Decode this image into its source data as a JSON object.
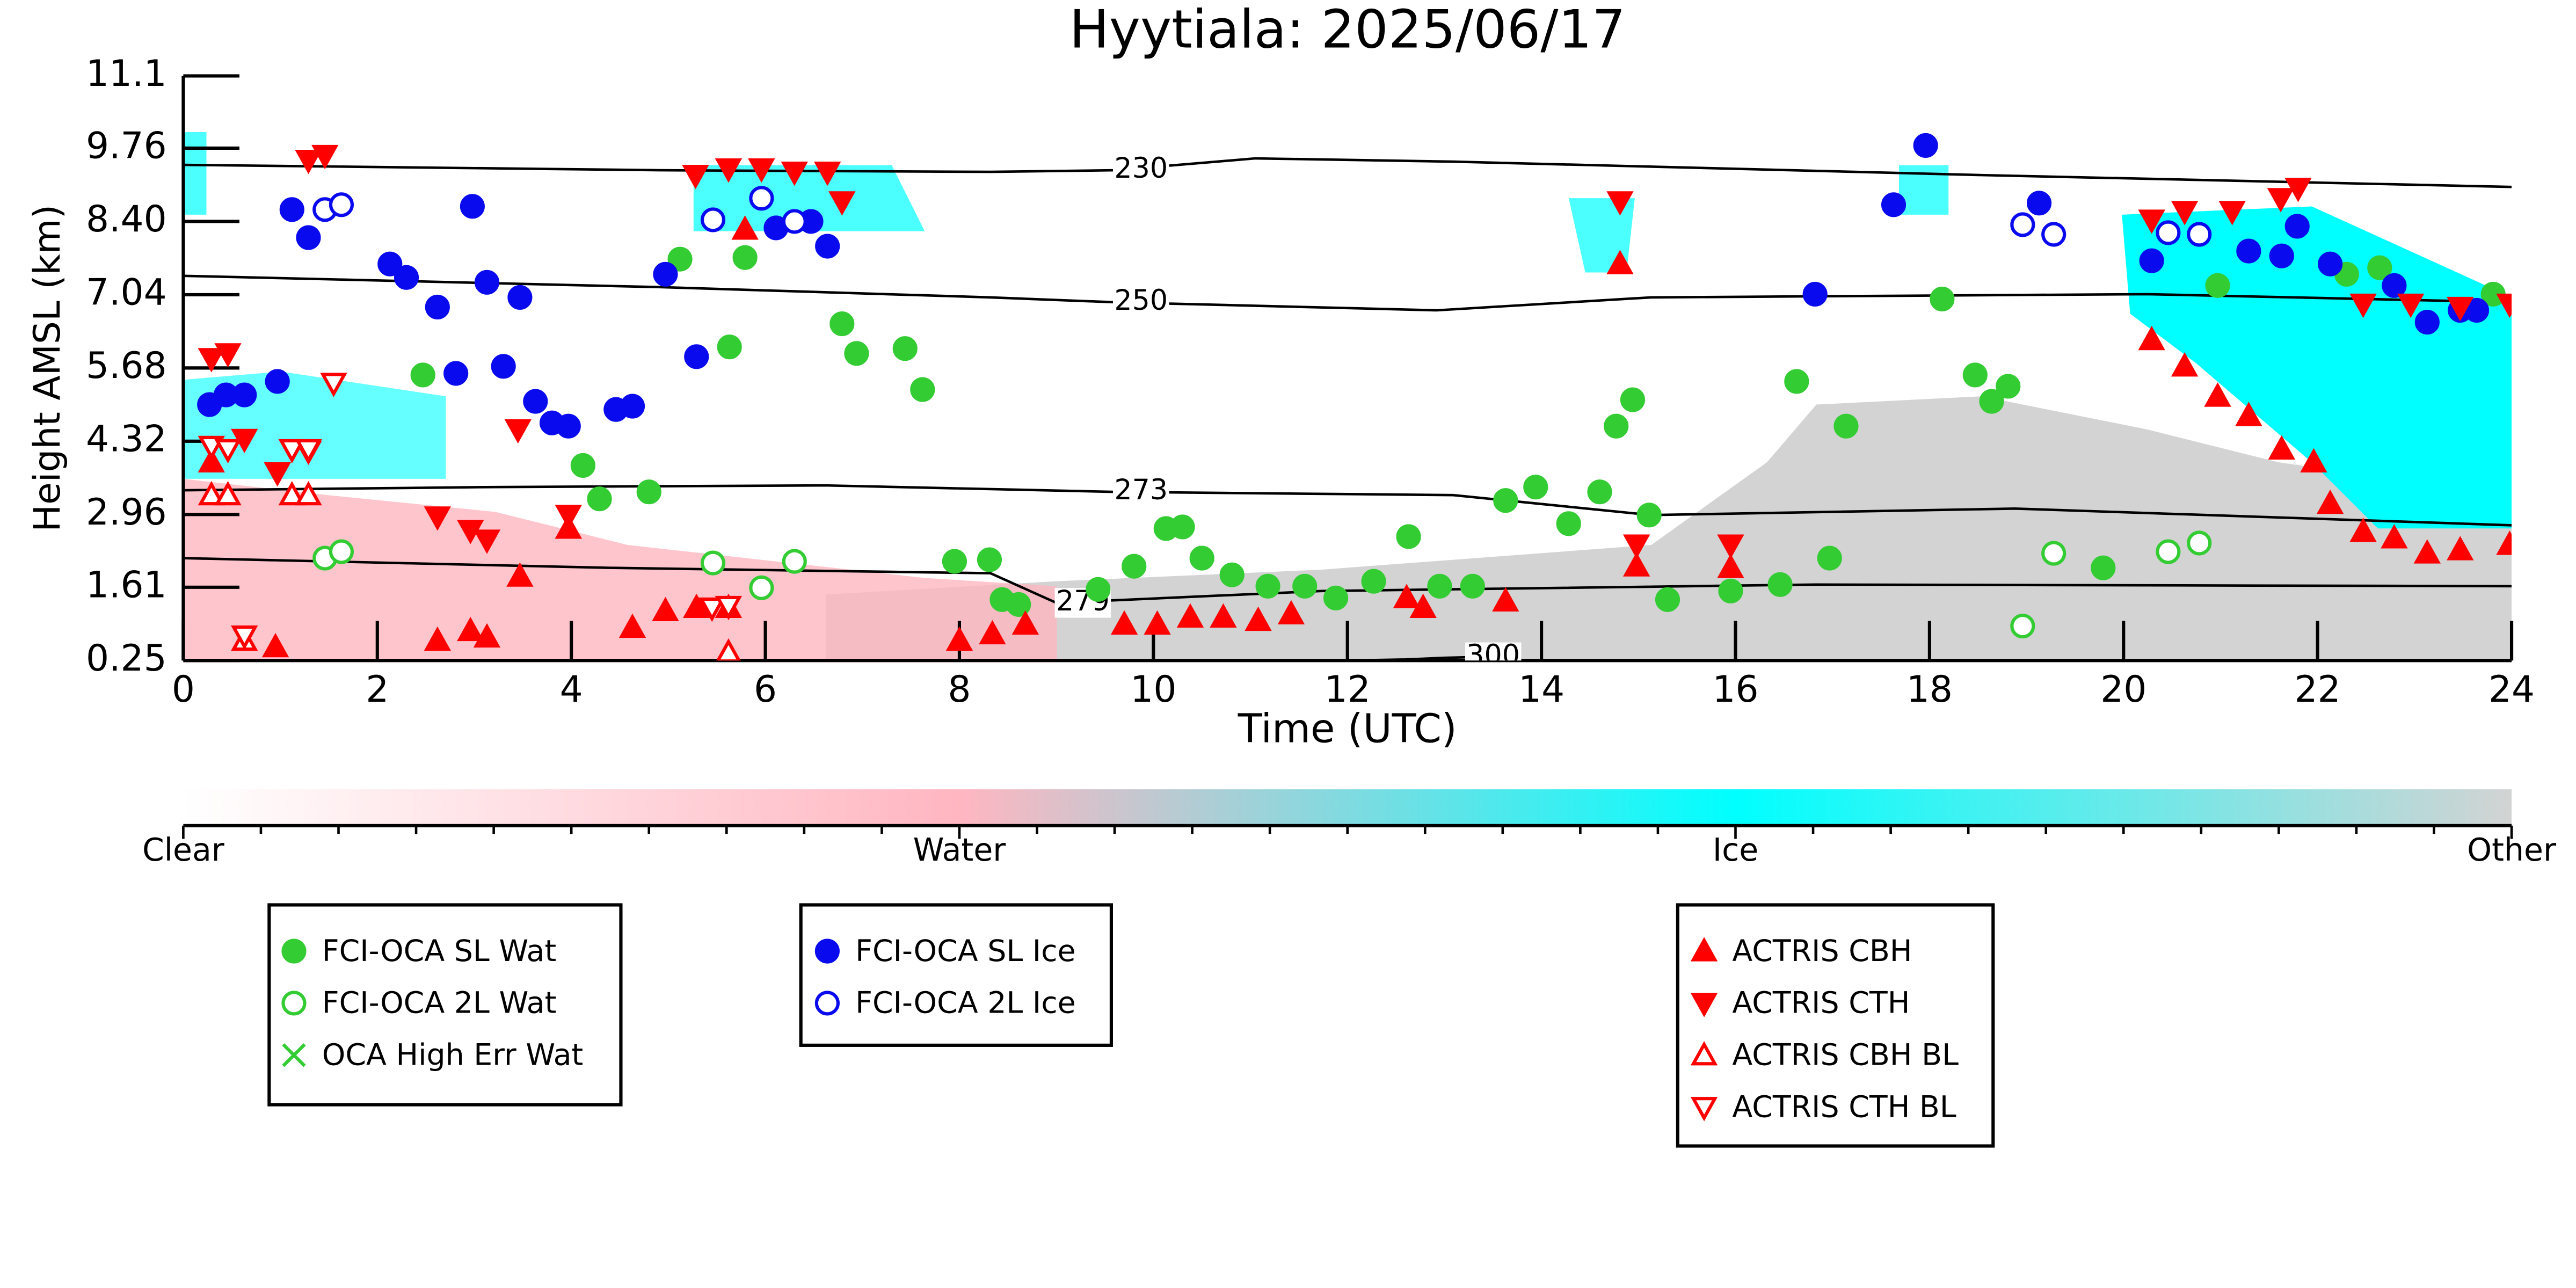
{
  "chart_data": {
    "type": "scatter",
    "title": "Hyytiala: 2025/06/17",
    "x_label": "Time (UTC)",
    "y_label": "Height AMSL (km)",
    "xlim": [
      0,
      24
    ],
    "xticks": [
      0,
      2,
      4,
      6,
      8,
      10,
      12,
      14,
      16,
      18,
      20,
      22,
      24
    ],
    "ylim": [
      0.25,
      11.1
    ],
    "yticks": [
      0.25,
      1.61,
      2.96,
      4.32,
      5.68,
      7.04,
      {
        "value": 8.4,
        "label": "8.40"
      },
      9.76,
      11.1
    ],
    "series": [
      {
        "name": "FCI-OCA SL Wat",
        "color": "#33cc33",
        "marker": "o",
        "filled": true,
        "x": [
          2.47,
          4.12,
          4.29,
          4.8,
          5.12,
          5.79,
          5.63,
          6.79,
          6.94,
          7.44,
          7.62,
          7.95,
          8.31,
          8.44,
          8.61,
          9.43,
          9.8,
          10.13,
          10.3,
          10.5,
          10.81,
          11.18,
          11.56,
          11.88,
          12.27,
          12.63,
          12.95,
          13.29,
          13.63,
          13.94,
          14.28,
          14.6,
          14.77,
          14.94,
          15.11,
          15.3,
          15.95,
          16.46,
          16.63,
          16.97,
          17.14,
          18.13,
          18.47,
          18.64,
          18.81,
          19.79,
          20.97,
          22.3,
          22.64,
          23.81
        ],
        "values": [
          5.55,
          3.87,
          3.25,
          3.38,
          7.7,
          7.73,
          6.07,
          6.5,
          5.95,
          6.04,
          5.28,
          2.09,
          2.12,
          1.38,
          1.29,
          1.57,
          2.0,
          2.7,
          2.73,
          2.15,
          1.84,
          1.63,
          1.63,
          1.41,
          1.72,
          2.55,
          1.63,
          1.63,
          3.22,
          3.47,
          2.79,
          3.38,
          4.6,
          5.09,
          2.95,
          1.38,
          1.54,
          1.66,
          5.43,
          2.15,
          4.6,
          6.96,
          5.55,
          5.06,
          5.34,
          1.97,
          7.21,
          7.42,
          7.54,
          7.05
        ]
      },
      {
        "name": "FCI-OCA 2L Wat",
        "color": "#33cc33",
        "marker": "o",
        "filled": false,
        "x": [
          1.46,
          1.63,
          5.46,
          5.96,
          6.3,
          18.96,
          19.28,
          20.46,
          20.78
        ],
        "values": [
          2.15,
          2.27,
          2.06,
          1.6,
          2.09,
          0.89,
          2.24,
          2.27,
          2.43
        ]
      },
      {
        "name": "OCA High Err Wat",
        "color": "#33cc33",
        "marker": "x",
        "filled": false,
        "x": [],
        "values": []
      },
      {
        "name": "FCI-OCA SL Ice",
        "color": "#0a0aee",
        "marker": "o",
        "filled": true,
        "x": [
          0.27,
          0.44,
          0.63,
          0.97,
          1.12,
          1.29,
          2.13,
          2.3,
          2.62,
          2.81,
          2.98,
          3.13,
          3.3,
          3.47,
          3.63,
          3.8,
          3.97,
          4.46,
          4.63,
          4.97,
          5.29,
          6.11,
          6.47,
          6.64,
          16.82,
          17.63,
          17.96,
          19.13,
          20.29,
          21.29,
          21.63,
          21.79,
          22.13,
          22.79,
          23.13,
          23.47,
          23.64
        ],
        "values": [
          5.0,
          5.18,
          5.18,
          5.43,
          8.62,
          8.1,
          7.61,
          7.36,
          6.81,
          5.58,
          8.68,
          7.27,
          5.71,
          6.99,
          5.06,
          4.66,
          4.6,
          4.91,
          4.97,
          7.42,
          5.89,
          8.28,
          8.4,
          7.94,
          7.05,
          8.71,
          9.81,
          8.74,
          7.67,
          7.85,
          7.76,
          8.31,
          7.61,
          7.21,
          6.53,
          6.75,
          6.75
        ]
      },
      {
        "name": "FCI-OCA 2L Ice",
        "color": "#0a0aee",
        "marker": "o",
        "filled": false,
        "x": [
          1.46,
          1.63,
          5.46,
          5.96,
          6.3,
          18.96,
          19.28,
          20.46,
          20.78
        ],
        "values": [
          8.62,
          8.71,
          8.43,
          8.83,
          8.4,
          8.34,
          8.16,
          8.19,
          8.16
        ]
      },
      {
        "name": "ACTRIS CBH",
        "color": "#ff0000",
        "marker": "^",
        "filled": true,
        "x": [
          0.29,
          0.95,
          2.62,
          2.96,
          3.13,
          3.47,
          3.97,
          4.63,
          4.97,
          5.29,
          5.62,
          5.79,
          8.0,
          8.34,
          8.68,
          9.7,
          10.04,
          10.38,
          10.72,
          11.08,
          11.42,
          12.61,
          12.78,
          13.63,
          14.81,
          14.98,
          15.95,
          20.29,
          20.63,
          20.97,
          21.29,
          21.63,
          21.96,
          22.13,
          22.47,
          22.79,
          23.13,
          23.47,
          23.98
        ],
        "values": [
          3.93,
          0.5,
          0.62,
          0.8,
          0.68,
          1.81,
          2.7,
          0.86,
          1.17,
          1.23,
          1.23,
          8.25,
          0.62,
          0.74,
          0.92,
          0.92,
          0.92,
          1.05,
          1.05,
          0.99,
          1.11,
          1.41,
          1.23,
          1.35,
          7.61,
          2.0,
          1.97,
          6.2,
          5.71,
          5.15,
          4.79,
          4.17,
          3.93,
          3.16,
          2.64,
          2.52,
          2.24,
          2.3,
          2.4
        ]
      },
      {
        "name": "ACTRIS CTH",
        "color": "#ff0000",
        "marker": "v",
        "filled": true,
        "x": [
          0.29,
          0.46,
          1.29,
          1.46,
          0.63,
          0.97,
          1.29,
          3.45,
          3.97,
          2.62,
          2.96,
          3.13,
          5.28,
          5.62,
          5.96,
          6.3,
          6.64,
          6.79,
          14.81,
          14.98,
          15.95,
          20.29,
          20.63,
          21.12,
          21.62,
          21.8,
          22.47,
          22.96,
          23.47,
          23.98
        ],
        "values": [
          5.86,
          5.95,
          9.54,
          9.63,
          4.36,
          3.74,
          4.14,
          4.54,
          2.95,
          2.92,
          2.67,
          2.49,
          9.26,
          9.38,
          9.38,
          9.32,
          9.32,
          8.77,
          8.77,
          2.4,
          2.4,
          8.43,
          8.59,
          8.59,
          8.83,
          9.02,
          6.87,
          6.87,
          6.81,
          6.87
        ]
      },
      {
        "name": "ACTRIS CBH BL",
        "color": "#ff0000",
        "marker": "^",
        "filled": false,
        "x": [
          0.29,
          0.46,
          1.12,
          1.29,
          0.63,
          5.62
        ],
        "values": [
          3.32,
          3.32,
          3.32,
          3.32,
          0.62,
          0.4
        ]
      },
      {
        "name": "ACTRIS CTH BL",
        "color": "#ff0000",
        "marker": "v",
        "filled": false,
        "x": [
          0.29,
          0.46,
          1.12,
          1.29,
          0.63,
          1.55,
          5.45,
          5.62
        ],
        "values": [
          4.23,
          4.17,
          4.17,
          4.17,
          0.71,
          5.4,
          1.23,
          1.26
        ]
      }
    ],
    "contours": [
      {
        "label": "230",
        "x": [
          0,
          4.92,
          8.32,
          9.6,
          11.05,
          13.09,
          18.54,
          24
        ],
        "y": [
          9.45,
          9.35,
          9.32,
          9.35,
          9.57,
          9.51,
          9.26,
          9.04
        ]
      },
      {
        "label": "250",
        "x": [
          0,
          4.92,
          8.32,
          9.6,
          12.92,
          15.13,
          20.24,
          24
        ],
        "y": [
          7.39,
          7.18,
          6.99,
          6.9,
          6.75,
          6.99,
          7.05,
          6.9
        ]
      },
      {
        "label": "273",
        "x": [
          0,
          3.22,
          6.62,
          9.6,
          13.09,
          15.13,
          18.88,
          24
        ],
        "y": [
          3.41,
          3.47,
          3.5,
          3.38,
          3.32,
          2.95,
          3.07,
          2.76
        ]
      },
      {
        "label": "279",
        "x": [
          0,
          4.41,
          8.32,
          9.0,
          11.73,
          16.83,
          24
        ],
        "y": [
          2.15,
          1.97,
          1.87,
          1.32,
          1.54,
          1.66,
          1.63
        ]
      },
      {
        "label": "300",
        "x": [
          12.0,
          12.6,
          13.0,
          13.23,
          13.5
        ],
        "y": [
          0.25,
          0.27,
          0.3,
          0.31,
          0.3
        ]
      }
    ],
    "colorbar": {
      "labels": [
        "Clear",
        "Water",
        "Ice",
        "Other"
      ],
      "colors": [
        "#ffffff",
        "#ffb6c1",
        "#00ffff",
        "#d3d3d3"
      ]
    }
  }
}
